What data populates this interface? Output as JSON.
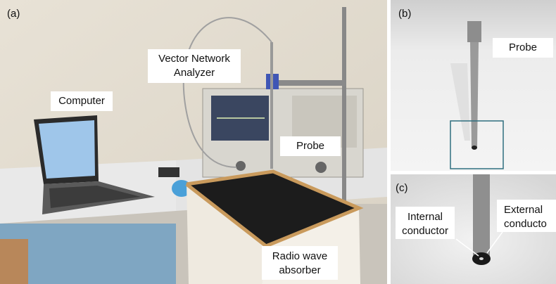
{
  "panels": [
    {
      "label": "(a)",
      "annotations": [
        {
          "lines": [
            "Computer"
          ]
        },
        {
          "lines": [
            "Vector Network",
            "Analyzer"
          ]
        },
        {
          "lines": [
            "Probe"
          ]
        },
        {
          "lines": [
            "Radio wave",
            "absorber"
          ]
        }
      ]
    },
    {
      "label": "(b)",
      "annotations": [
        {
          "lines": [
            "Probe"
          ]
        }
      ]
    },
    {
      "label": "(c)",
      "annotations": [
        {
          "lines": [
            "Internal",
            "conductor"
          ]
        },
        {
          "lines": [
            "External",
            "conducto"
          ]
        }
      ]
    }
  ]
}
